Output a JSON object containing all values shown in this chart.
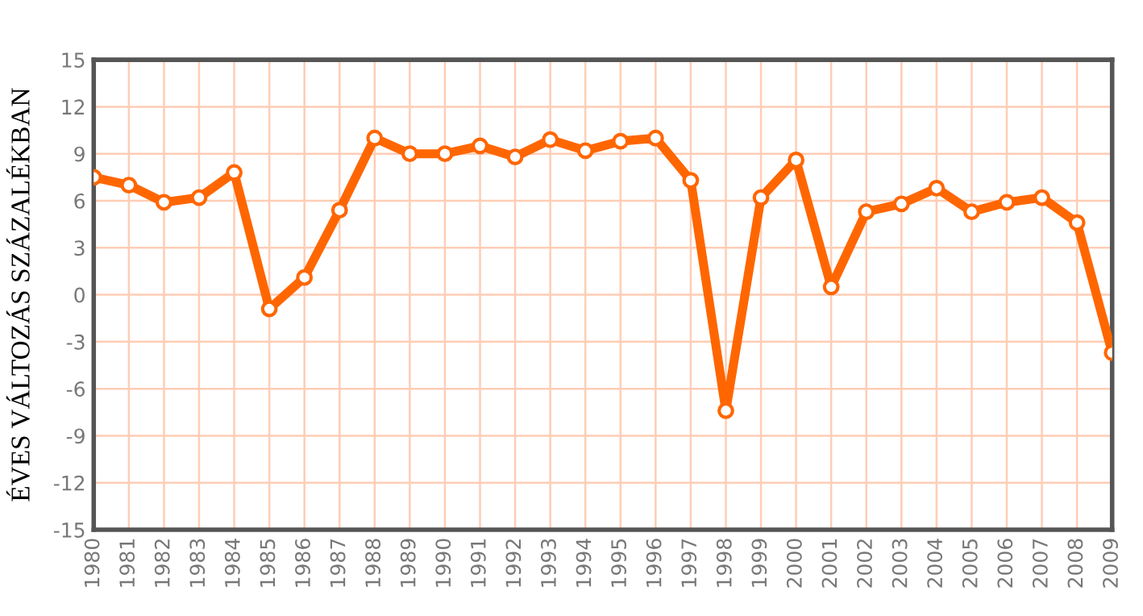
{
  "chart_data": {
    "type": "line",
    "ylabel": "ÉVES VÁLTOZÁS SZÁZALÉKBAN",
    "categories": [
      "1980",
      "1981",
      "1982",
      "1983",
      "1984",
      "1985",
      "1986",
      "1987",
      "1988",
      "1989",
      "1990",
      "1991",
      "1992",
      "1993",
      "1994",
      "1995",
      "1996",
      "1997",
      "1998",
      "1999",
      "2000",
      "2001",
      "2002",
      "2003",
      "2004",
      "2005",
      "2006",
      "2007",
      "2008",
      "2009"
    ],
    "series": [
      {
        "color": "#ff6600",
        "values": [
          7.5,
          7.0,
          5.9,
          6.2,
          7.8,
          -0.9,
          1.1,
          5.4,
          10.0,
          9.0,
          9.0,
          9.5,
          8.8,
          9.9,
          9.2,
          9.8,
          10.0,
          7.3,
          -7.4,
          6.2,
          8.6,
          0.5,
          5.3,
          5.8,
          6.8,
          5.3,
          5.9,
          6.2,
          4.6,
          -3.7
        ]
      }
    ],
    "ylim": [
      -15,
      15
    ],
    "yticks": [
      -15,
      -12,
      -9,
      -6,
      -3,
      0,
      3,
      6,
      9,
      12,
      15
    ],
    "grid": true,
    "marker": "circle",
    "line_style": "solid",
    "legend": false
  }
}
